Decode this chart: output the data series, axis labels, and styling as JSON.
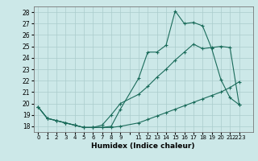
{
  "background_color": "#cce8e8",
  "grid_color": "#aacccc",
  "line_color": "#1a6b5a",
  "xlabel": "Humidex (Indice chaleur)",
  "xlim": [
    -0.5,
    23.5
  ],
  "ylim": [
    17.5,
    28.5
  ],
  "yticks": [
    18,
    19,
    20,
    21,
    22,
    23,
    24,
    25,
    26,
    27,
    28
  ],
  "xtick_positions": [
    0,
    1,
    2,
    3,
    4,
    5,
    6,
    7,
    8,
    9,
    10,
    11,
    12,
    13,
    14,
    15,
    16,
    17,
    18,
    19,
    20,
    21,
    22
  ],
  "xtick_labels": [
    "0",
    "1",
    "2",
    "3",
    "4",
    "5",
    "6",
    "7",
    "8",
    "9",
    "",
    "11",
    "12",
    "13",
    "14",
    "15",
    "16",
    "17",
    "18",
    "19",
    "20",
    "21",
    "2223"
  ],
  "series1_x": [
    0,
    1,
    2,
    3,
    4,
    5,
    6,
    7,
    8,
    9,
    11,
    12,
    13,
    14,
    15,
    16,
    17,
    18,
    19,
    20,
    21,
    22
  ],
  "series1_y": [
    19.7,
    18.7,
    18.5,
    18.3,
    18.1,
    17.9,
    17.9,
    17.9,
    17.9,
    18.0,
    18.3,
    18.6,
    18.9,
    19.2,
    19.5,
    19.8,
    20.1,
    20.4,
    20.7,
    21.0,
    21.4,
    21.9
  ],
  "series2_x": [
    0,
    1,
    2,
    3,
    4,
    5,
    6,
    7,
    8,
    9,
    11,
    12,
    13,
    14,
    15,
    16,
    17,
    18,
    19,
    20,
    21,
    22
  ],
  "series2_y": [
    19.7,
    18.7,
    18.5,
    18.3,
    18.1,
    17.9,
    17.9,
    18.1,
    19.0,
    20.0,
    20.8,
    21.5,
    22.3,
    23.0,
    23.8,
    24.5,
    25.2,
    24.8,
    24.9,
    25.0,
    24.9,
    19.9
  ],
  "series3_x": [
    0,
    1,
    2,
    3,
    4,
    5,
    6,
    7,
    8,
    9,
    11,
    12,
    13,
    14,
    15,
    16,
    17,
    18,
    19,
    20,
    21,
    22
  ],
  "series3_y": [
    19.7,
    18.7,
    18.5,
    18.3,
    18.1,
    17.9,
    17.9,
    17.9,
    18.0,
    19.5,
    22.2,
    24.5,
    24.5,
    25.1,
    28.1,
    27.0,
    27.1,
    26.8,
    24.8,
    22.1,
    20.5,
    19.9
  ]
}
